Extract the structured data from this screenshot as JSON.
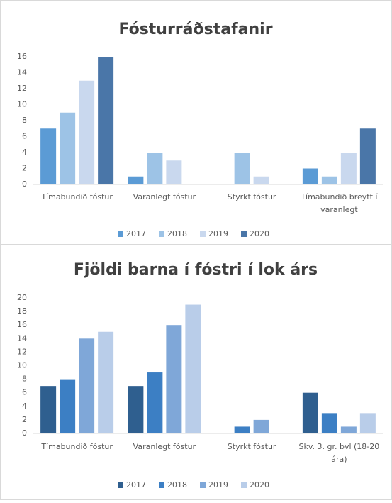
{
  "chart_data": [
    {
      "type": "bar",
      "title": "Fósturráðstafanir",
      "categories": [
        "Tímabundið fóstur",
        "Varanlegt fóstur",
        "Styrkt fóstur",
        "Tímabundið breytt í varanlegt"
      ],
      "series": [
        {
          "name": "2017",
          "color": "#5b9bd5",
          "values": [
            7,
            1,
            0,
            2
          ]
        },
        {
          "name": "2018",
          "color": "#9dc3e6",
          "values": [
            9,
            4,
            4,
            1
          ]
        },
        {
          "name": "2019",
          "color": "#c9d8ee",
          "values": [
            13,
            3,
            1,
            4
          ]
        },
        {
          "name": "2020",
          "color": "#4a76a8",
          "values": [
            16,
            0,
            0,
            7
          ]
        }
      ],
      "ylim": [
        0,
        16
      ],
      "yticks": [
        0,
        2,
        4,
        6,
        8,
        10,
        12,
        14,
        16
      ],
      "legend": "bottom"
    },
    {
      "type": "bar",
      "title": "Fjöldi barna í fóstri í lok árs",
      "categories": [
        "Tímabundið fóstur",
        "Varanlegt fóstur",
        "Styrkt fóstur",
        "Skv. 3. gr. bvl (18-20 ára)"
      ],
      "series": [
        {
          "name": "2017",
          "color": "#2f5f8f",
          "values": [
            7,
            7,
            0,
            6
          ]
        },
        {
          "name": "2018",
          "color": "#3c7fc4",
          "values": [
            8,
            9,
            1,
            3
          ]
        },
        {
          "name": "2019",
          "color": "#7fa7d8",
          "values": [
            14,
            16,
            2,
            1
          ]
        },
        {
          "name": "2020",
          "color": "#b9cde9",
          "values": [
            15,
            19,
            0,
            3
          ]
        }
      ],
      "ylim": [
        0,
        20
      ],
      "yticks": [
        0,
        2,
        4,
        6,
        8,
        10,
        12,
        14,
        16,
        18,
        20
      ],
      "legend": "bottom"
    }
  ]
}
